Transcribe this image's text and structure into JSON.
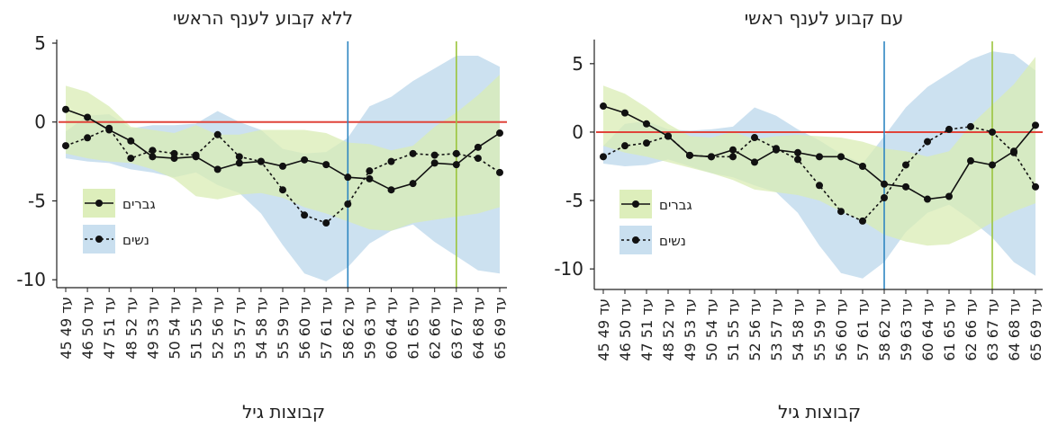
{
  "chart_data": [
    {
      "type": "line",
      "title": "ללא קבוע לענף הראשי",
      "xlabel": "קבוצות גיל",
      "ylabel": "",
      "ylim": [
        -10.5,
        5
      ],
      "yticks": [
        5,
        0,
        -5,
        -10
      ],
      "categories": [
        "45 עד 49",
        "46 עד 50",
        "47 עד 51",
        "48 עד 52",
        "49 עד 53",
        "50 עד 54",
        "51 עד 55",
        "52 עד 56",
        "53 עד 57",
        "54 עד 58",
        "55 עד 59",
        "56 עד 60",
        "57 עד 61",
        "58 עד 62",
        "59 עד 63",
        "60 עד 64",
        "61 עד 65",
        "62 עד 66",
        "63 עד 67",
        "64 עד 68",
        "65 עד 69"
      ],
      "reference_lines": {
        "horizontal_y": 0,
        "vertical_categories": [
          "58 עד 62",
          "63 עד 67"
        ],
        "colors": [
          "#2e86c1",
          "#9bc53d"
        ]
      },
      "legend_position": "bottom-left",
      "series": [
        {
          "name": "גברים",
          "style": "solid",
          "band_color": "#d9ecb4",
          "values": [
            0.8,
            0.3,
            -0.5,
            -1.2,
            -2.2,
            -2.3,
            -2.2,
            -3.0,
            -2.6,
            -2.5,
            -2.8,
            -2.4,
            -2.7,
            -3.5,
            -3.6,
            -4.3,
            -3.9,
            -2.6,
            -2.7,
            -1.6,
            -0.7
          ],
          "ci_low": [
            -2.0,
            -2.3,
            -2.5,
            -2.6,
            -3.0,
            -3.6,
            -4.7,
            -4.9,
            -4.6,
            -4.5,
            -4.8,
            -5.4,
            -5.8,
            -6.3,
            -6.8,
            -6.9,
            -6.4,
            -6.2,
            -6.0,
            -5.8,
            -5.4
          ],
          "ci_high": [
            2.3,
            1.9,
            1.0,
            -0.3,
            -0.5,
            -0.7,
            -0.2,
            -0.8,
            -0.8,
            -0.5,
            -0.5,
            -0.5,
            -0.7,
            -1.3,
            -1.4,
            -1.8,
            -1.5,
            -0.3,
            0.6,
            1.7,
            3.0
          ]
        },
        {
          "name": "נשים",
          "style": "dotted",
          "band_color": "#c3dced",
          "values": [
            -1.5,
            -1.0,
            -0.4,
            -2.3,
            -1.8,
            -2.0,
            -2.1,
            -0.8,
            -2.2,
            -2.5,
            -4.3,
            -5.9,
            -6.4,
            -5.2,
            -3.1,
            -2.5,
            -2.0,
            -2.1,
            -2.0,
            -2.3,
            -3.2
          ],
          "ci_low": [
            -2.3,
            -2.5,
            -2.6,
            -3.0,
            -3.2,
            -3.5,
            -3.2,
            -4.0,
            -4.5,
            -5.8,
            -7.8,
            -9.6,
            -10.1,
            -9.2,
            -7.7,
            -6.9,
            -6.5,
            -7.6,
            -8.5,
            -9.4,
            -9.6
          ],
          "ci_high": [
            -0.6,
            0.4,
            0.5,
            -0.4,
            -0.2,
            -0.2,
            -0.1,
            0.7,
            0.0,
            -0.5,
            -1.7,
            -2.0,
            -1.9,
            -1.0,
            1.0,
            1.6,
            2.6,
            3.4,
            4.2,
            4.2,
            3.5
          ]
        }
      ]
    },
    {
      "type": "line",
      "title": "עם קבוע לענף ראשי",
      "xlabel": "קבוצות גיל",
      "ylabel": "",
      "ylim": [
        -11.5,
        6.5
      ],
      "yticks": [
        5,
        0,
        -5,
        -10
      ],
      "categories": [
        "45 עד 49",
        "46 עד 50",
        "47 עד 51",
        "48 עד 52",
        "49 עד 53",
        "50 עד 54",
        "51 עד 55",
        "52 עד 56",
        "53 עד 57",
        "54 עד 58",
        "55 עד 59",
        "56 עד 60",
        "57 עד 61",
        "58 עד 62",
        "59 עד 63",
        "60 עד 64",
        "61 עד 65",
        "62 עד 66",
        "63 עד 67",
        "64 עד 68",
        "65 עד 69"
      ],
      "reference_lines": {
        "horizontal_y": 0,
        "vertical_categories": [
          "58 עד 62",
          "63 עד 67"
        ],
        "colors": [
          "#2e86c1",
          "#9bc53d"
        ]
      },
      "legend_position": "bottom-left",
      "series": [
        {
          "name": "גברים",
          "style": "solid",
          "band_color": "#d9ecb4",
          "values": [
            1.9,
            1.4,
            0.6,
            -0.3,
            -1.7,
            -1.8,
            -1.3,
            -2.2,
            -1.3,
            -1.5,
            -1.8,
            -1.8,
            -2.5,
            -3.8,
            -4.0,
            -4.9,
            -4.7,
            -2.1,
            -2.4,
            -1.4,
            0.5
          ],
          "ci_low": [
            -1.0,
            -1.5,
            -1.8,
            -2.2,
            -2.6,
            -3.0,
            -3.5,
            -4.2,
            -4.4,
            -4.6,
            -5.0,
            -5.8,
            -6.5,
            -7.5,
            -8.0,
            -8.3,
            -8.2,
            -7.5,
            -6.6,
            -5.8,
            -5.2
          ],
          "ci_high": [
            3.4,
            2.8,
            1.8,
            0.6,
            -0.3,
            -0.4,
            0.0,
            -0.5,
            -0.3,
            -0.2,
            -0.3,
            -0.4,
            -0.7,
            -1.2,
            -1.4,
            -1.8,
            -1.4,
            0.5,
            2.0,
            3.5,
            5.5
          ]
        },
        {
          "name": "נשים",
          "style": "dotted",
          "band_color": "#c3dced",
          "values": [
            -1.8,
            -1.0,
            -0.8,
            -0.3,
            -1.7,
            -1.8,
            -1.8,
            -0.4,
            -1.2,
            -2.0,
            -3.9,
            -5.8,
            -6.5,
            -4.8,
            -2.4,
            -0.7,
            0.2,
            0.4,
            0.0,
            -1.5,
            -4.0
          ],
          "ci_low": [
            -2.3,
            -2.5,
            -2.4,
            -2.0,
            -2.5,
            -3.0,
            -3.3,
            -3.9,
            -4.4,
            -5.9,
            -8.3,
            -10.3,
            -10.7,
            -9.5,
            -7.3,
            -5.9,
            -5.3,
            -6.4,
            -7.7,
            -9.5,
            -10.5
          ],
          "ci_high": [
            -1.0,
            0.6,
            0.8,
            0.2,
            0.1,
            0.2,
            0.4,
            1.8,
            1.2,
            0.2,
            -0.6,
            -1.6,
            -2.3,
            -0.3,
            1.8,
            3.3,
            4.3,
            5.3,
            5.9,
            5.7,
            4.5
          ]
        }
      ]
    }
  ]
}
